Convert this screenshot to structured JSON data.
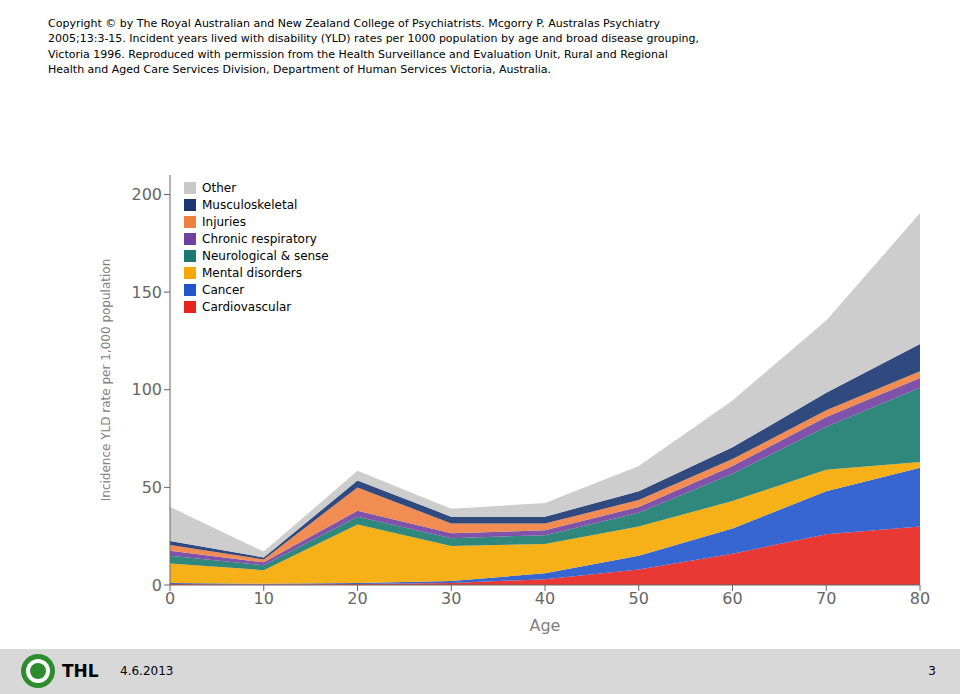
{
  "chart_data": {
    "type": "area",
    "stacked": true,
    "title": "Copyright © by The Royal Australian and New Zealand College of Psychiatrists. Mcgorry P. Australas Psychiatry\n2005;13:3-15. Incident years lived with disability (YLD) rates per 1000 population by age and broad disease grouping,\nVictoria 1996. Reproduced with permission from the Health Surveillance and Evaluation Unit, Rural and Regional\nHealth and Aged Care Services Division, Department of Human Services Victoria, Australia.",
    "xlabel": "Age",
    "ylabel": "Incidence YLD rate per 1,000 population",
    "x": [
      0,
      10,
      20,
      30,
      40,
      50,
      60,
      70,
      80
    ],
    "series": [
      {
        "name": "Cardiovascular",
        "color": "#e8231e",
        "values": [
          0.5,
          0.3,
          0.5,
          1.0,
          3.0,
          8.0,
          16.0,
          26.0,
          30.0
        ]
      },
      {
        "name": "Cancer",
        "color": "#2255cc",
        "values": [
          0.5,
          0.3,
          0.5,
          1.0,
          3.0,
          7.0,
          13.0,
          22.0,
          30.0
        ]
      },
      {
        "name": "Mental disorders",
        "color": "#f5a800",
        "values": [
          10.0,
          7.0,
          30.0,
          18.0,
          15.0,
          15.0,
          14.0,
          11.0,
          3.0
        ]
      },
      {
        "name": "Neurological & sense",
        "color": "#1a7a6e",
        "values": [
          4.0,
          2.5,
          4.0,
          4.0,
          4.5,
          7.0,
          14.0,
          22.0,
          38.0
        ]
      },
      {
        "name": "Chronic respiratory",
        "color": "#7040a0",
        "values": [
          2.5,
          1.5,
          3.0,
          2.5,
          2.5,
          3.0,
          4.0,
          5.0,
          5.0
        ]
      },
      {
        "name": "Injuries",
        "color": "#f08040",
        "values": [
          3.0,
          1.5,
          12.0,
          5.0,
          3.5,
          3.5,
          3.5,
          3.5,
          3.5
        ]
      },
      {
        "name": "Musculoskeletal",
        "color": "#1a3570",
        "values": [
          2.0,
          1.0,
          3.5,
          3.5,
          3.5,
          4.5,
          6.0,
          9.0,
          14.0
        ]
      },
      {
        "name": "Other",
        "color": "#c8c8c8",
        "values": [
          17.5,
          3.0,
          5.0,
          4.0,
          7.0,
          13.0,
          24.0,
          37.0,
          67.0
        ]
      }
    ],
    "xlim": [
      0,
      80
    ],
    "ylim": [
      0,
      210
    ],
    "xticks": [
      0,
      10,
      20,
      30,
      40,
      50,
      60,
      70,
      80
    ],
    "yticks": [
      0,
      50,
      100,
      150,
      200
    ],
    "legend": "upper left",
    "grid": false,
    "annotations": [
      "4.6.2013",
      "3",
      "THL"
    ]
  }
}
